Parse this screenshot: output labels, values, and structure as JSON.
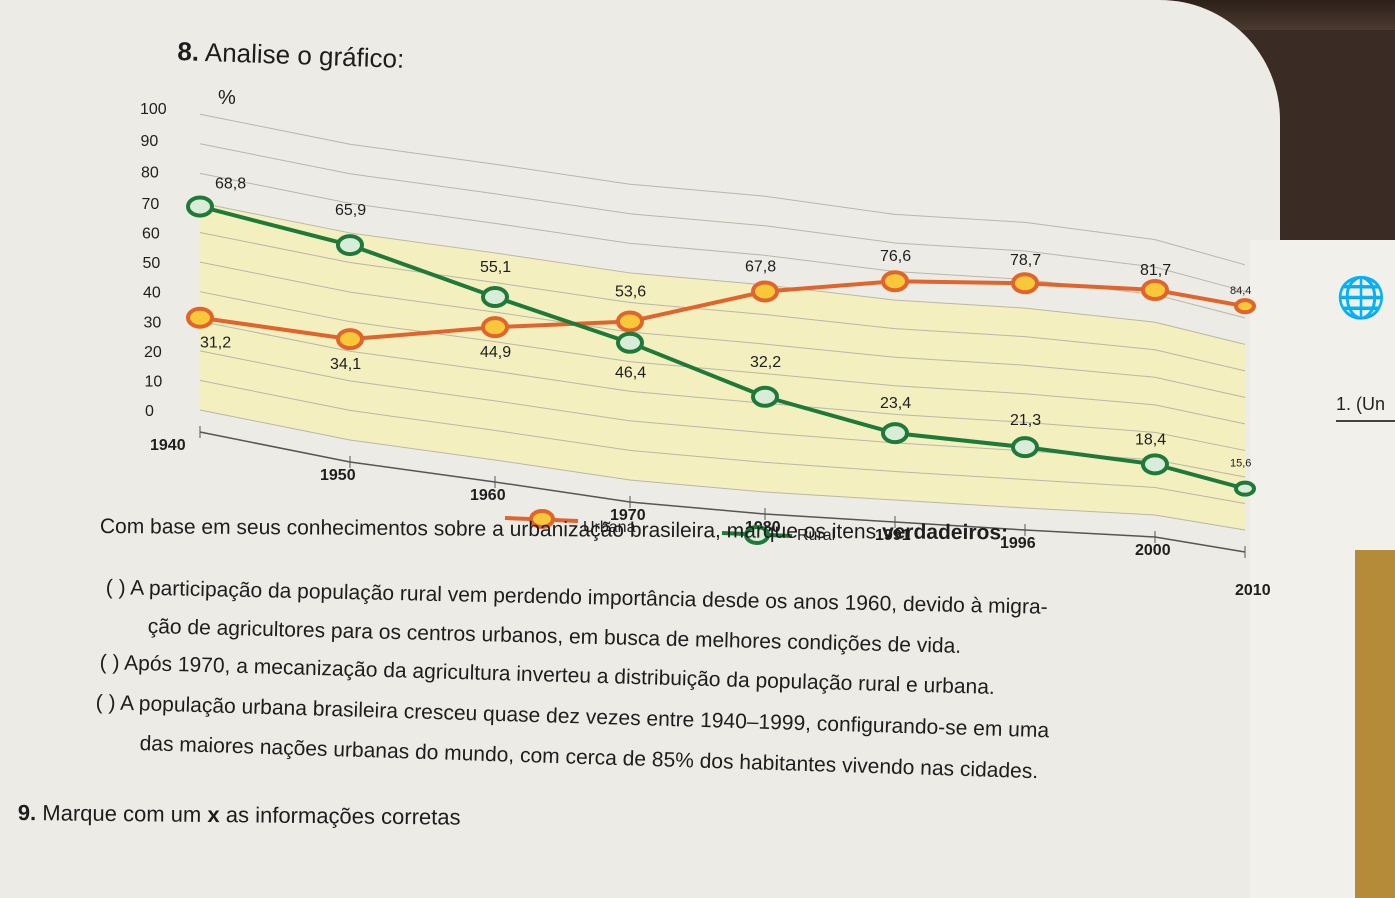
{
  "question8": {
    "number": "8.",
    "text": "Analise o gráfico:"
  },
  "chart_data": {
    "type": "line",
    "ylabel": "%",
    "ylim": [
      0,
      100
    ],
    "yticks": [
      "100",
      "90",
      "80",
      "70",
      "60",
      "50",
      "40",
      "30",
      "20",
      "10",
      "0"
    ],
    "x": [
      "1940",
      "1950",
      "1960",
      "1970",
      "1980",
      "1991",
      "1996",
      "2000",
      "2010"
    ],
    "series": [
      {
        "name": "Urbana",
        "color": "#f2b41c",
        "values": [
          31.2,
          34.1,
          44.9,
          53.6,
          67.8,
          76.6,
          78.7,
          81.7,
          84.4
        ],
        "labels": [
          "31,2",
          "34,1",
          "44,9",
          "53,6",
          "67,8",
          "76,6",
          "78,7",
          "81,7",
          "84,4"
        ]
      },
      {
        "name": "Rural",
        "color": "#1f7a3a",
        "values": [
          68.8,
          65.9,
          55.1,
          46.4,
          32.2,
          23.4,
          21.3,
          18.4,
          15.6
        ],
        "labels": [
          "68,8",
          "65,9",
          "55,1",
          "46,4",
          "32,2",
          "23,4",
          "21,3",
          "18,4",
          "15,6"
        ]
      }
    ],
    "legend": [
      "Urbana",
      "Rural"
    ]
  },
  "prompt": "Com base em seus conhecimentos sobre a urbanização brasileira, marque os itens",
  "prompt_bold": "verdadeiros:",
  "items": [
    {
      "box": "(   )",
      "line1": "A participação da população rural vem perdendo importância desde os anos 1960, devido à migra-",
      "line2": "ção de agricultores para os centros urbanos, em busca de melhores condições de vida."
    },
    {
      "box": "(   )",
      "line1": "Após 1970, a mecanização da agricultura inverteu a distribuição da população rural e urbana."
    },
    {
      "box": "(   )",
      "line1": "A população urbana brasileira cresceu quase dez vezes entre 1940–1999, configurando-se em uma",
      "line2": "das maiores nações urbanas do mundo, com cerca de 85% dos habitantes vivendo nas cidades."
    }
  ],
  "question9": {
    "number": "9.",
    "text_a": "Marque com um",
    "text_x": "x",
    "text_b": "as informações corretas"
  },
  "side": {
    "label": "1. (Un"
  }
}
